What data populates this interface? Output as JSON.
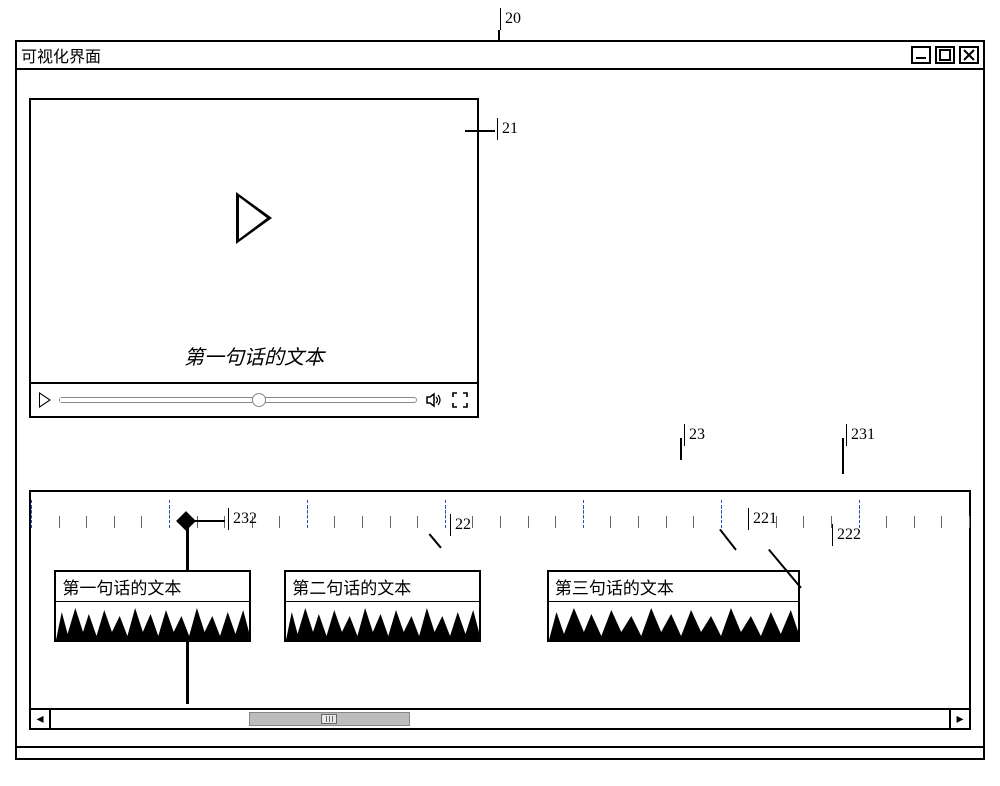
{
  "window": {
    "title": "可视化界面"
  },
  "player": {
    "subtitle": "第一句话的文本",
    "seek_percent": 56
  },
  "timeline": {
    "playhead_percent": 16.5,
    "clips": [
      {
        "label": "第一句话的文本",
        "left_pct": 2.5,
        "width_pct": 21
      },
      {
        "label": "第二句话的文本",
        "left_pct": 27,
        "width_pct": 21
      },
      {
        "label": "第三句话的文本",
        "left_pct": 55,
        "width_pct": 27
      }
    ],
    "scroll": {
      "thumb_left_pct": 22,
      "thumb_width_pct": 18
    }
  },
  "callouts": {
    "c20": "20",
    "c21": "21",
    "c22": "22",
    "c23": "23",
    "c221": "221",
    "c222": "222",
    "c231": "231",
    "c232": "232"
  },
  "styling": {
    "border_color": "#000000",
    "tick_minor_color": "#666666",
    "tick_major_color": "#2a52be",
    "scroll_thumb_color": "#bdbdbd",
    "wave_color": "#000000",
    "font_family": "SimSun",
    "title_fontsize": 16,
    "subtitle_fontsize": 20,
    "clip_label_fontsize": 17,
    "callout_fontsize": 16
  }
}
